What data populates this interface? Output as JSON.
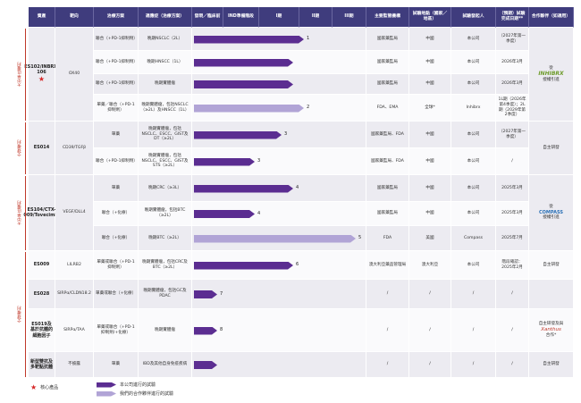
{
  "header": [
    "資產",
    "靶向",
    "治療方案",
    "適應症（治療方案）",
    "發現／臨床前",
    "IND準備階段",
    "I期",
    "II期",
    "III期",
    "主要監管機構",
    "試驗地點（國家／地區）",
    "試驗發起人",
    "（預期）試驗完成日期**",
    "合作夥伴（如適用）"
  ],
  "groups": [
    {
      "rights": "大中華區權利",
      "assets": [
        {
          "name": "ES102/INBRX-106",
          "target": "OX40",
          "partner": {
            "before": "從",
            "logo": "INHIBRX",
            "after": "授權引進"
          },
          "rows": [
            {
              "regimen": "聯合（+PD-1抑制劑）",
              "indication": "晚期NSCLC（2L）",
              "bar_label": "1",
              "regulator": "國家藥監局",
              "site": "中國",
              "sponsor": "本公司",
              "date": "（2027年第一季度）"
            },
            {
              "regimen": "聯合（+PD-1抑制劑）",
              "indication": "晚期HNSCC（1L）",
              "regulator": "國家藥監局",
              "site": "中國",
              "sponsor": "本公司",
              "date": "2026年3月"
            },
            {
              "regimen": "聯合（+PD-1抑制劑）",
              "indication": "晚期實體瘤",
              "regulator": "國家藥監局",
              "site": "中國",
              "sponsor": "本公司",
              "date": "2026年3月"
            },
            {
              "regimen": "單藥／聯合（+PD-1抑制劑）",
              "indication": "晚期實體瘤，包括NSCLC（≥2L）及HNSCC（1L）",
              "bar_label": "2",
              "regulator": "FDA、EMA",
              "site": "全球*",
              "sponsor": "Inhibrx",
              "date": "1L期（2026年第4季度）；2L期（2029年第2季度）"
            }
          ]
        }
      ]
    },
    {
      "rights": "全球權利",
      "assets": [
        {
          "name": "ES014",
          "target": "CD39/TGFβ",
          "partner": {
            "before": "自主研發"
          },
          "rows": [
            {
              "regimen": "單藥",
              "indication": "晚期實體瘤，包括NSCLC、ESCC、GIST及DT（≥2L）",
              "bar_label": "3",
              "regulator": "國家藥監局、FDA",
              "site": "中國",
              "sponsor": "本公司",
              "date": "（2027年第一季度）"
            },
            {
              "regimen": "聯合（+PD-1抑制劑）",
              "indication": "晚期實體瘤，包括NSCLC、ESCC、GIST及STS（≥2L）",
              "bar_label": "3",
              "regulator": "國家藥監局、FDA",
              "site": "中國",
              "sponsor": "本公司",
              "date": "/"
            }
          ]
        }
      ]
    },
    {
      "rights": "大中華區權利",
      "assets": [
        {
          "name": "ES104/CTX-009/Tovecimig",
          "target": "VEGF/DLL4",
          "partner": {
            "before": "從",
            "logo": "COMPASS",
            "after": "授權引進"
          },
          "rows": [
            {
              "regimen": "單藥",
              "indication": "晚期CRC（≥3L）",
              "bar_label": "4",
              "regulator": "國家藥監局",
              "site": "中國",
              "sponsor": "本公司",
              "date": "2025年3月"
            },
            {
              "regimen": "聯合（+化療）",
              "indication": "晚期實體瘤，包括BTC（≥2L）",
              "bar_label": "4",
              "regulator": "國家藥監局",
              "site": "中國",
              "sponsor": "本公司",
              "date": "2025年3月"
            },
            {
              "regimen": "聯合（+化療）",
              "indication": "晚期BTC（≥2L）",
              "bar_label": "5",
              "regulator": "FDA",
              "site": "美國",
              "sponsor": "Compass",
              "date": "2025年7月"
            }
          ]
        }
      ]
    },
    {
      "rights": "全球權利",
      "assets": [
        {
          "name": "ES009",
          "target": "LILRB2",
          "partner": {
            "before": "自主研發"
          },
          "rows": [
            {
              "regimen": "單藥或聯合（+PD-1抑制劑）",
              "indication": "晚期實體瘤，包括CRC及BTC（≥2L）",
              "bar_label": "6",
              "regulator": "澳大利亞藥品管理局",
              "site": "澳大利亞",
              "sponsor": "本公司",
              "date": "階段確認：2025年2月"
            }
          ]
        },
        {
          "name": "ES028",
          "target": "SIRPα/CLDN18.2",
          "rows": [
            {
              "regimen": "單藥或聯合（+化療）",
              "indication": "晚期實體瘤，包括GC及PDAC",
              "bar_label": "7",
              "regulator": "/",
              "site": "/",
              "sponsor": "/",
              "date": "/"
            }
          ]
        },
        {
          "name": "ES019及基於抗體的細胞因子",
          "target": "SIRPα/TAA",
          "partner": {
            "before": "自主研發及與",
            "logo": "Xanthus",
            "after": "合作*"
          },
          "rows": [
            {
              "regimen": "單藥或聯合（+PD-1抑制劑/+化療）",
              "indication": "晚期實體瘤",
              "bar_label": "8",
              "regulator": "/",
              "site": "/",
              "sponsor": "/",
              "date": "/"
            }
          ]
        },
        {
          "name": "新型雙抗及多靶點抗體",
          "target": "不披露",
          "partner": {
            "before": "自主研發"
          },
          "rows": [
            {
              "regimen": "單藥",
              "indication": "IBD及其他自身免疫疾病",
              "regulator": "/",
              "site": "/",
              "sponsor": "/",
              "date": "/"
            }
          ]
        }
      ]
    }
  ],
  "legend": {
    "core": "核心產品",
    "company": "本公司進行的試驗",
    "partner": "我們的合作夥伴進行的試驗"
  }
}
